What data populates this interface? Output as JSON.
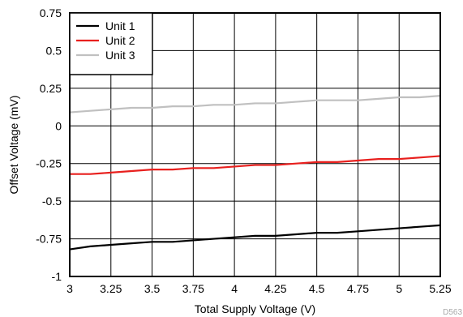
{
  "chart_data": {
    "type": "line",
    "xlabel": "Total Supply Voltage (V)",
    "ylabel": "Offset Voltage (mV)",
    "xlim": [
      3,
      5.25
    ],
    "ylim": [
      -1,
      0.75
    ],
    "xticks": [
      3,
      3.25,
      3.5,
      3.75,
      4,
      4.25,
      4.5,
      4.75,
      5,
      5.25
    ],
    "xtick_labels": [
      "3",
      "3.25",
      "3.5",
      "3.75",
      "4",
      "4.25",
      "4.5",
      "4.75",
      "5",
      "5.25"
    ],
    "yticks": [
      -1,
      -0.75,
      -0.5,
      -0.25,
      0,
      0.25,
      0.5,
      0.75
    ],
    "ytick_labels": [
      "-1",
      "-0.75",
      "-0.5",
      "-0.25",
      "0",
      "0.25",
      "0.5",
      "0.75"
    ],
    "grid": true,
    "legend_position": "top-left",
    "code_label": "D563",
    "x": [
      3,
      3.125,
      3.25,
      3.375,
      3.5,
      3.625,
      3.75,
      3.875,
      4,
      4.125,
      4.25,
      4.375,
      4.5,
      4.625,
      4.75,
      4.875,
      5,
      5.125,
      5.25
    ],
    "series": [
      {
        "name": "Unit 1",
        "color": "#000000",
        "values": [
          -0.82,
          -0.8,
          -0.79,
          -0.78,
          -0.77,
          -0.77,
          -0.76,
          -0.75,
          -0.74,
          -0.73,
          -0.73,
          -0.72,
          -0.71,
          -0.71,
          -0.7,
          -0.69,
          -0.68,
          -0.67,
          -0.66
        ]
      },
      {
        "name": "Unit 2",
        "color": "#e8201e",
        "values": [
          -0.32,
          -0.32,
          -0.31,
          -0.3,
          -0.29,
          -0.29,
          -0.28,
          -0.28,
          -0.27,
          -0.26,
          -0.26,
          -0.25,
          -0.24,
          -0.24,
          -0.23,
          -0.22,
          -0.22,
          -0.21,
          -0.2
        ]
      },
      {
        "name": "Unit 3",
        "color": "#c0c0c0",
        "values": [
          0.09,
          0.1,
          0.11,
          0.12,
          0.12,
          0.13,
          0.13,
          0.14,
          0.14,
          0.15,
          0.15,
          0.16,
          0.17,
          0.17,
          0.17,
          0.18,
          0.19,
          0.19,
          0.2
        ]
      }
    ]
  }
}
